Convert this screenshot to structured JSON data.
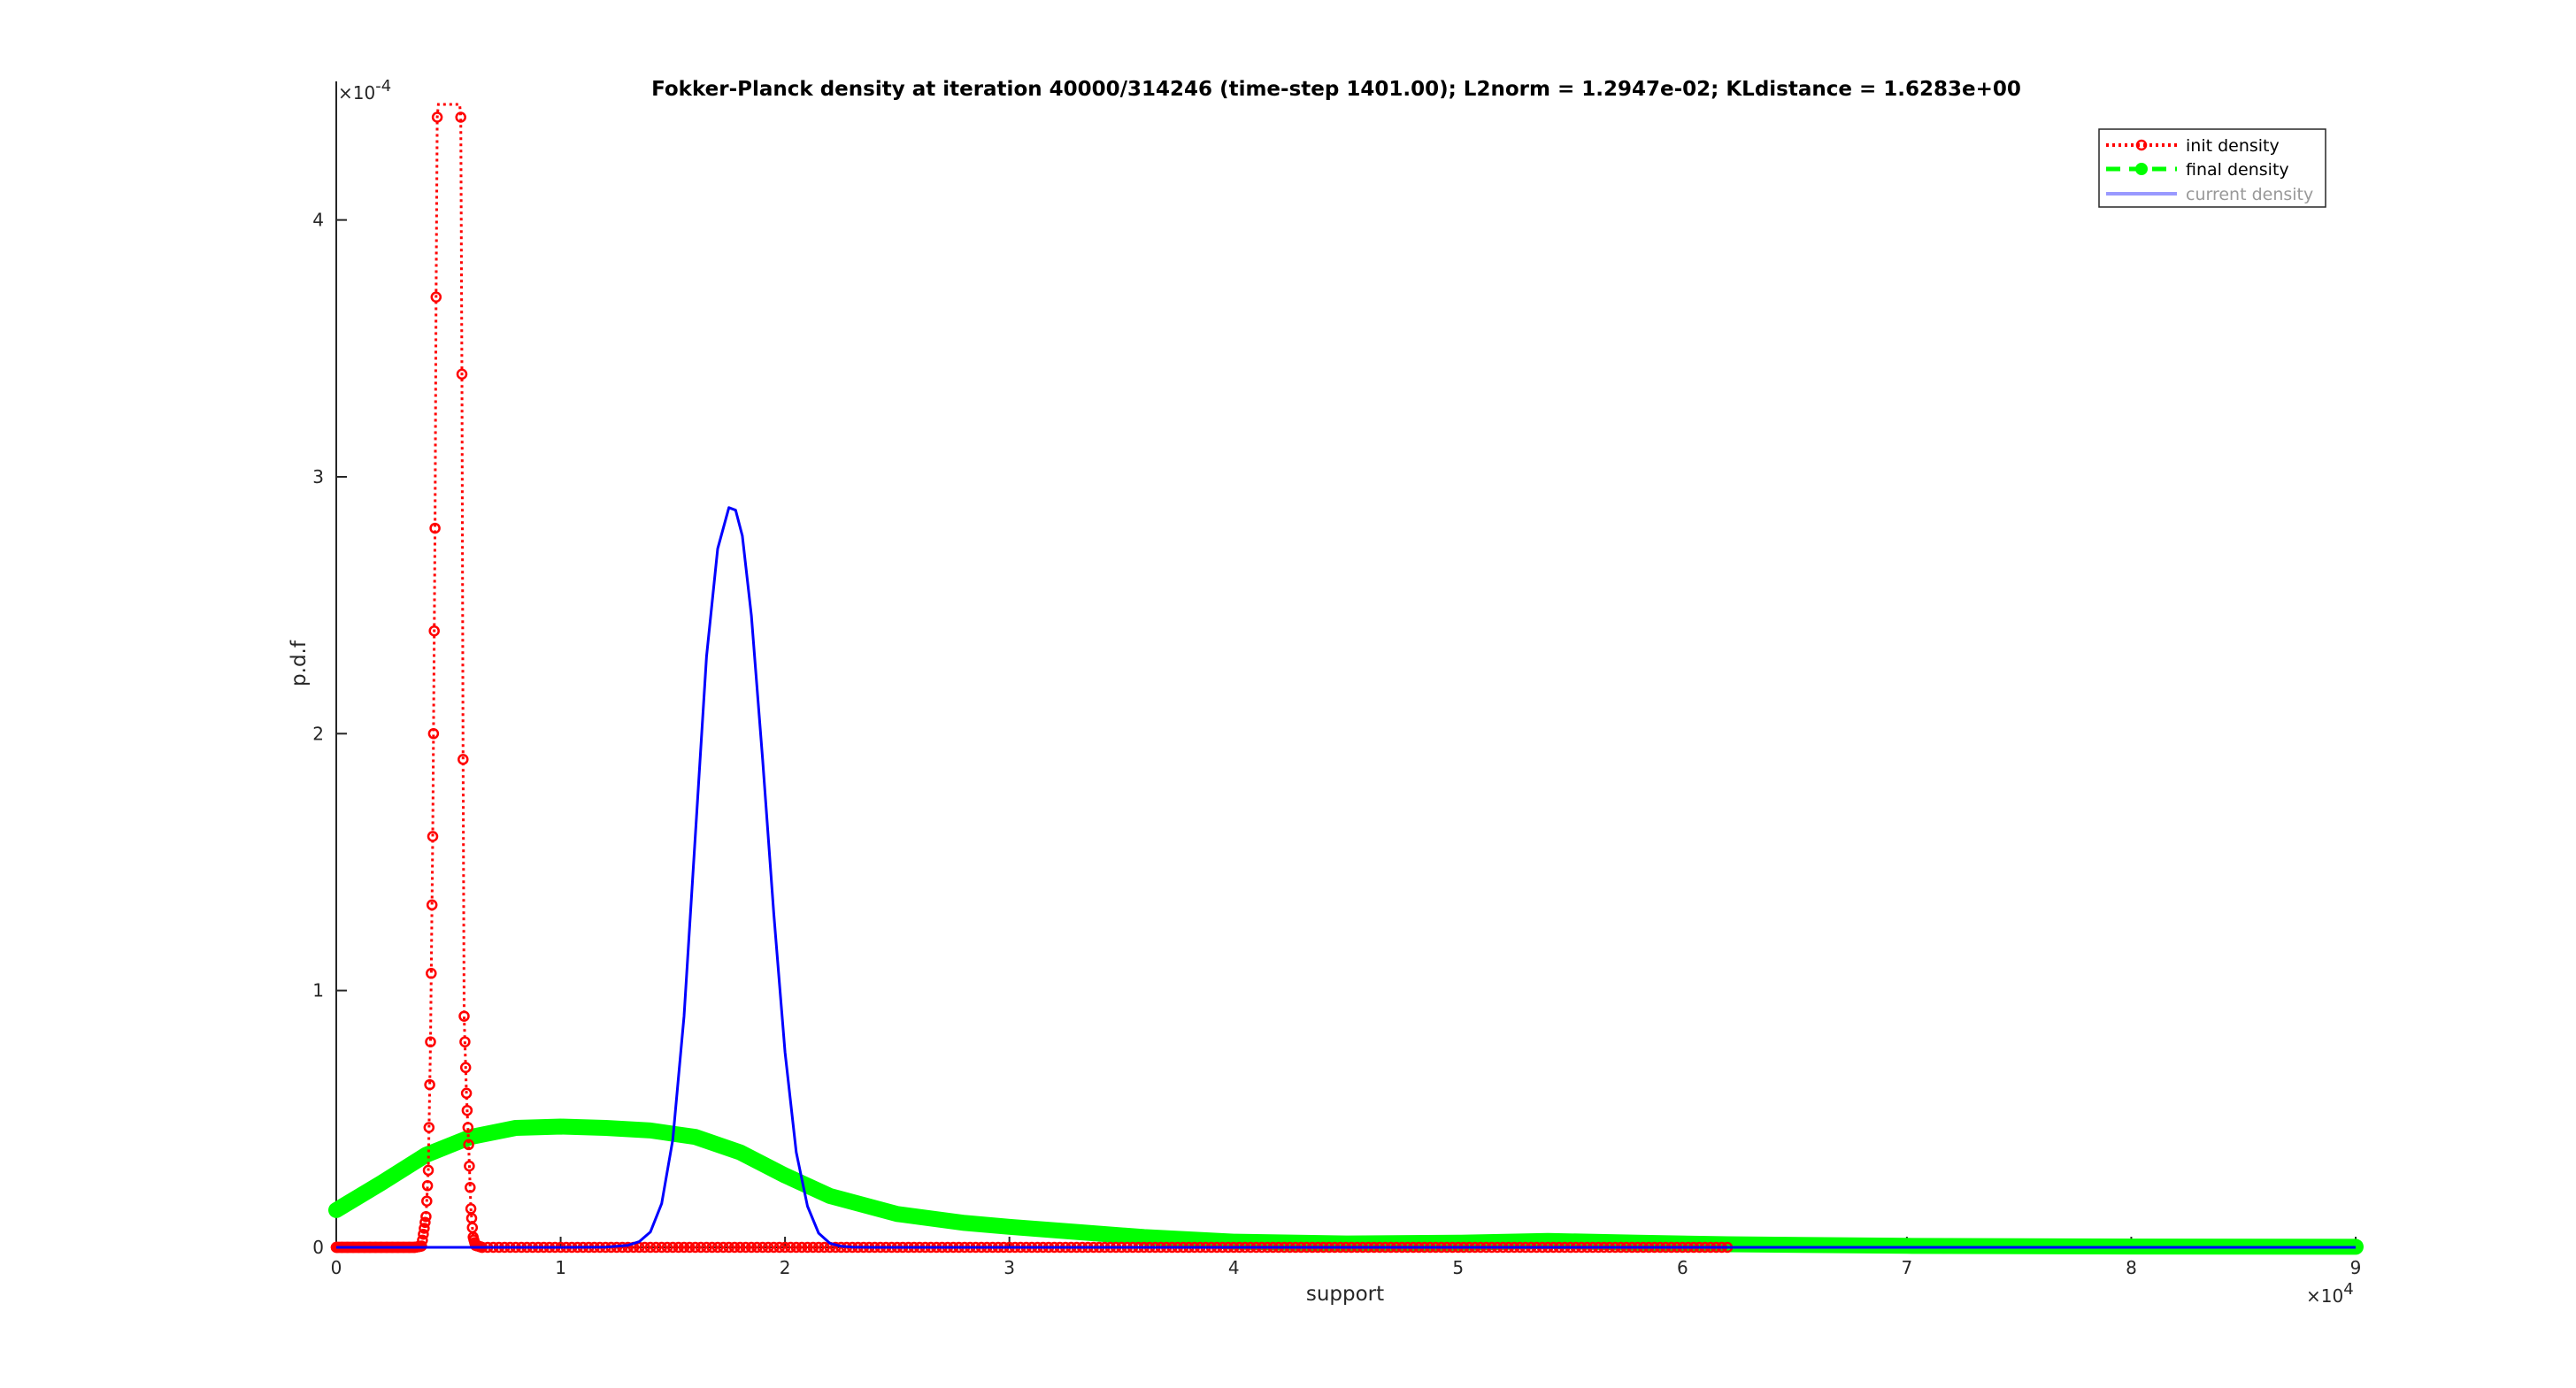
{
  "chart_data": {
    "type": "line",
    "title": "Fokker-Planck density at iteration 40000/314246 (time-step 1401.00); L2norm = 1.2947e-02; KLdistance = 1.6283e+00",
    "xlabel": "support",
    "ylabel": "p.d.f",
    "x_multiplier": "×10",
    "x_multiplier_exp": "4",
    "y_multiplier": "×10",
    "y_multiplier_exp": "-4",
    "xlim": [
      0,
      90000
    ],
    "ylim": [
      0,
      0.000445
    ],
    "x_ticks": [
      0,
      10000,
      20000,
      30000,
      40000,
      50000,
      60000,
      70000,
      80000,
      90000
    ],
    "x_tick_labels": [
      "0",
      "1",
      "2",
      "3",
      "4",
      "5",
      "6",
      "7",
      "8",
      "9"
    ],
    "y_ticks": [
      0,
      0.0001,
      0.0002,
      0.0003,
      0.0004
    ],
    "y_tick_labels": [
      "0",
      "1",
      "2",
      "3",
      "4"
    ],
    "grid": false,
    "legend_position": "top-right",
    "series": [
      {
        "name": "init density",
        "color": "#ff0000",
        "style": "dotted-circles",
        "x": [
          0,
          3500,
          3800,
          4000,
          4100,
          4200,
          4300,
          4400,
          4450,
          4500,
          4550,
          4600,
          4650,
          4700,
          4800,
          4900,
          5000,
          5100,
          5200,
          5300,
          5350,
          5400,
          5450,
          5500,
          5550,
          5600,
          5650,
          5700,
          5800,
          5900,
          6000,
          6100,
          6200,
          6500,
          10000,
          20000,
          30000,
          40000,
          50000,
          60000,
          62000
        ],
        "y": [
          0,
          0,
          5e-07,
          1.2e-05,
          3e-05,
          8e-05,
          0.00016,
          0.00028,
          0.00037,
          0.00044,
          0.00045,
          0.00045,
          0.00045,
          0.00045,
          0.00045,
          0.00045,
          0.00045,
          0.00045,
          0.00045,
          0.00045,
          0.00045,
          0.00045,
          0.00045,
          0.00045,
          0.00044,
          0.00034,
          0.00019,
          9e-05,
          6e-05,
          4e-05,
          1.5e-05,
          4e-06,
          8e-07,
          0,
          0,
          0,
          0,
          0,
          0,
          0,
          0
        ]
      },
      {
        "name": "final density",
        "color": "#00ff00",
        "style": "dashed-thick",
        "x": [
          0,
          2000,
          4000,
          6000,
          8000,
          10000,
          12000,
          14000,
          16000,
          18000,
          20000,
          22000,
          25000,
          28000,
          30000,
          33000,
          36000,
          40000,
          45000,
          50000,
          54000,
          58000,
          62000,
          70000,
          80000,
          90000
        ],
        "y": [
          1.45e-05,
          2.5e-05,
          3.6e-05,
          4.3e-05,
          4.65e-05,
          4.7e-05,
          4.65e-05,
          4.55e-05,
          4.3e-05,
          3.7e-05,
          2.8e-05,
          2e-05,
          1.3e-05,
          9.5e-06,
          8e-06,
          6e-06,
          4e-06,
          2.2e-06,
          1.5e-06,
          1.8e-06,
          2.5e-06,
          1.8e-06,
          1.2e-06,
          6e-07,
          3e-07,
          2e-07
        ]
      },
      {
        "name": "current density",
        "color": "#0000ff",
        "style": "solid",
        "x": [
          0,
          10000,
          12000,
          13000,
          13500,
          14000,
          14500,
          15000,
          15500,
          16000,
          16500,
          17000,
          17500,
          17800,
          18100,
          18500,
          19000,
          19500,
          20000,
          20500,
          21000,
          21500,
          22000,
          22500,
          23000,
          24000,
          30000,
          40000,
          50000,
          60000,
          70000,
          80000,
          90000
        ],
        "y": [
          0,
          0,
          1e-07,
          8e-07,
          2.2e-06,
          6e-06,
          1.7e-05,
          4.2e-05,
          9e-05,
          0.00016,
          0.00023,
          0.000272,
          0.000288,
          0.000287,
          0.000277,
          0.000246,
          0.00019,
          0.00013,
          7.6e-05,
          3.7e-05,
          1.6e-05,
          5.5e-06,
          1.6e-06,
          4e-07,
          1e-07,
          0,
          0,
          0,
          0,
          0,
          0,
          0,
          0
        ]
      }
    ]
  }
}
